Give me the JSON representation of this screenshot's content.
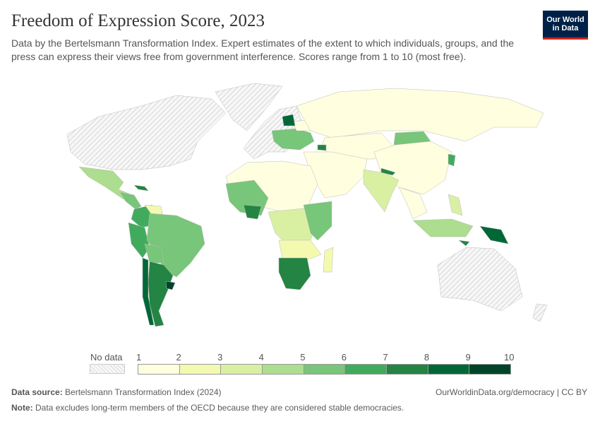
{
  "header": {
    "title": "Freedom of Expression Score, 2023",
    "subtitle": "Data by the Bertelsmann Transformation Index. Expert estimates of the extent to which individuals, groups, and the press can express their views free from government interference. Scores range from 1 to 10 (most free).",
    "logo": "Our World in Data"
  },
  "legend": {
    "no_data_label": "No data",
    "ticks": [
      "1",
      "2",
      "3",
      "4",
      "5",
      "6",
      "7",
      "8",
      "9",
      "10"
    ],
    "colors": [
      "#ffffe0",
      "#f4f9b0",
      "#d9f0a3",
      "#addd8e",
      "#78c679",
      "#41ab5d",
      "#238443",
      "#006837",
      "#004529"
    ]
  },
  "footer": {
    "source_label": "Data source:",
    "source": "Bertelsmann Transformation Index (2024)",
    "url": "OurWorldinData.org/democracy | CC BY",
    "note_label": "Note:",
    "note": "Data excludes long-term members of the OECD because they are considered stable democracies."
  }
}
